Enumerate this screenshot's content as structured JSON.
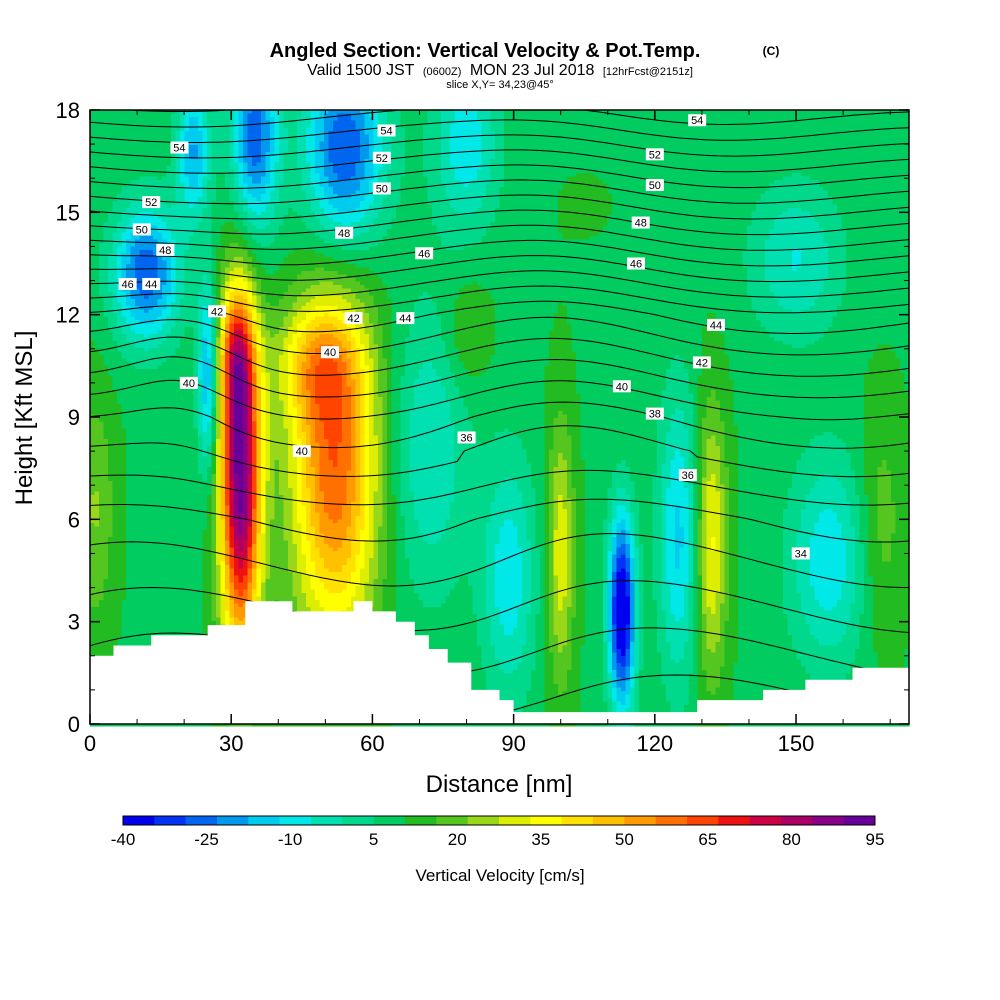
{
  "chart_data": {
    "type": "heatmap",
    "title": "Angled Section: Vertical Velocity & Pot.Temp.",
    "title_units": "(C)",
    "subtitle_main_a": "Valid 1500 JST",
    "subtitle_small_a": "(0600Z)",
    "subtitle_main_b": "MON 23 Jul 2018",
    "subtitle_small_b": "[12hrFcst@2151z]",
    "slice_label": "slice X,Y= 34,23@45°",
    "xlabel": "Distance [nm]",
    "ylabel": "Height [Kft MSL]",
    "xlim": [
      0,
      174
    ],
    "ylim": [
      0,
      18
    ],
    "x_ticks": [
      "0",
      "30",
      "60",
      "90",
      "120",
      "150"
    ],
    "x_tick_values": [
      0,
      30,
      60,
      90,
      120,
      150
    ],
    "y_ticks": [
      "0",
      "3",
      "6",
      "9",
      "12",
      "15",
      "18"
    ],
    "y_tick_values": [
      0,
      3,
      6,
      9,
      12,
      15,
      18
    ],
    "colorbar": {
      "label": "Vertical Velocity [cm/s]",
      "tick_labels": [
        "-40",
        "-25",
        "-10",
        "5",
        "20",
        "35",
        "50",
        "65",
        "80",
        "95"
      ],
      "min": -40,
      "max": 95,
      "colors": [
        "#0000ee",
        "#0033f5",
        "#0066f0",
        "#0099ee",
        "#00ccf0",
        "#00e8e8",
        "#00e0b0",
        "#00d88c",
        "#00cc60",
        "#22bb22",
        "#55c520",
        "#99d818",
        "#ddee00",
        "#ffff00",
        "#ffe000",
        "#ffc000",
        "#ff9a00",
        "#ff7000",
        "#ff4400",
        "#ee1111",
        "#cc0044",
        "#aa0066",
        "#880088",
        "#660099"
      ]
    },
    "terrain_profile": {
      "x_nm": [
        0,
        5,
        5,
        13,
        13,
        25,
        25,
        33,
        33,
        43,
        43,
        56,
        56,
        60,
        60,
        65,
        65,
        69,
        69,
        72,
        72,
        76,
        76,
        81,
        81,
        87,
        87,
        90,
        90,
        129,
        129,
        143,
        143,
        152,
        152,
        162,
        162,
        175
      ],
      "height_kft": [
        2.0,
        2.0,
        2.3,
        2.3,
        2.6,
        2.6,
        2.9,
        2.9,
        3.6,
        3.6,
        3.3,
        3.3,
        3.6,
        3.6,
        3.3,
        3.3,
        3.0,
        3.0,
        2.6,
        2.6,
        2.2,
        2.2,
        1.8,
        1.8,
        1.0,
        1.0,
        0.7,
        0.7,
        0.35,
        0.35,
        0.7,
        0.7,
        1.0,
        1.0,
        1.3,
        1.3,
        1.65,
        1.65
      ]
    },
    "vertical_velocity_features": [
      {
        "x": 32,
        "y": 7.2,
        "sx": 3.0,
        "sy": 3.5,
        "value": 95
      },
      {
        "x": 31,
        "y": 10.8,
        "sx": 2.5,
        "sy": 1.3,
        "value": 40
      },
      {
        "x": 52,
        "y": 7.5,
        "sx": 6.5,
        "sy": 3.5,
        "value": 62
      },
      {
        "x": 48,
        "y": 10.5,
        "sx": 6.0,
        "sy": 1.2,
        "value": 32
      },
      {
        "x": 100,
        "y": 5.0,
        "sx": 2.0,
        "sy": 2.7,
        "value": 32
      },
      {
        "x": 113,
        "y": 3.3,
        "sx": 2.0,
        "sy": 2.0,
        "value": -48
      },
      {
        "x": 125,
        "y": 5.5,
        "sx": 3.0,
        "sy": 3.0,
        "value": -15
      },
      {
        "x": 132,
        "y": 5.3,
        "sx": 2.3,
        "sy": 2.8,
        "value": 35
      },
      {
        "x": 157,
        "y": 4.8,
        "sx": 6.0,
        "sy": 2.2,
        "value": -12
      },
      {
        "x": 168,
        "y": 5.8,
        "sx": 3.5,
        "sy": 2.5,
        "value": 20
      },
      {
        "x": 1,
        "y": 6.3,
        "sx": 3.0,
        "sy": 2.5,
        "value": 22
      },
      {
        "x": 12,
        "y": 13.2,
        "sx": 5.0,
        "sy": 1.4,
        "value": -30
      },
      {
        "x": 35,
        "y": 17.2,
        "sx": 3.5,
        "sy": 2.0,
        "value": -30
      },
      {
        "x": 54,
        "y": 16.8,
        "sx": 6.0,
        "sy": 2.0,
        "value": -32
      },
      {
        "x": 22,
        "y": 16.8,
        "sx": 2.5,
        "sy": 1.4,
        "value": -20
      },
      {
        "x": 25,
        "y": 10.2,
        "sx": 1.5,
        "sy": 2.0,
        "value": -22
      },
      {
        "x": 80,
        "y": 17.0,
        "sx": 5.0,
        "sy": 1.8,
        "value": -12
      },
      {
        "x": 72,
        "y": 8.0,
        "sx": 6.0,
        "sy": 3.0,
        "value": -8
      },
      {
        "x": 89,
        "y": 4.3,
        "sx": 4.0,
        "sy": 2.5,
        "value": -12
      },
      {
        "x": 105,
        "y": 15.2,
        "sx": 12.0,
        "sy": 2.0,
        "value": 10
      },
      {
        "x": 80,
        "y": 11.4,
        "sx": 3.5,
        "sy": 1.2,
        "value": 18
      },
      {
        "x": 150,
        "y": 13.6,
        "sx": 7.0,
        "sy": 1.6,
        "value": -8
      }
    ],
    "theta_contour_levels": [
      "54",
      "52",
      "50",
      "48",
      "46",
      "44",
      "42",
      "40",
      "38",
      "36",
      "34"
    ],
    "contour_labels": [
      {
        "text": "54",
        "x": 19,
        "y": 16.9
      },
      {
        "text": "54",
        "x": 63,
        "y": 17.4
      },
      {
        "text": "54",
        "x": 129,
        "y": 17.7
      },
      {
        "text": "52",
        "x": 13,
        "y": 15.3
      },
      {
        "text": "52",
        "x": 62,
        "y": 16.6
      },
      {
        "text": "52",
        "x": 120,
        "y": 16.7
      },
      {
        "text": "50",
        "x": 11,
        "y": 14.5
      },
      {
        "text": "50",
        "x": 62,
        "y": 15.7
      },
      {
        "text": "50",
        "x": 120,
        "y": 15.8
      },
      {
        "text": "48",
        "x": 16,
        "y": 13.9
      },
      {
        "text": "48",
        "x": 54,
        "y": 14.4
      },
      {
        "text": "48",
        "x": 117,
        "y": 14.7
      },
      {
        "text": "46",
        "x": 8,
        "y": 12.9
      },
      {
        "text": "46",
        "x": 71,
        "y": 13.8
      },
      {
        "text": "46",
        "x": 116,
        "y": 13.5
      },
      {
        "text": "44",
        "x": 13,
        "y": 12.9
      },
      {
        "text": "44",
        "x": 67,
        "y": 11.9
      },
      {
        "text": "44",
        "x": 133,
        "y": 11.7
      },
      {
        "text": "42",
        "x": 27,
        "y": 12.1
      },
      {
        "text": "42",
        "x": 56,
        "y": 11.9
      },
      {
        "text": "42",
        "x": 130,
        "y": 10.6
      },
      {
        "text": "40",
        "x": 21,
        "y": 10.0
      },
      {
        "text": "40",
        "x": 51,
        "y": 10.9
      },
      {
        "text": "40",
        "x": 113,
        "y": 9.9
      },
      {
        "text": "40",
        "x": 45,
        "y": 8.0
      },
      {
        "text": "38",
        "x": 120,
        "y": 9.1
      },
      {
        "text": "36",
        "x": 80,
        "y": 8.4
      },
      {
        "text": "36",
        "x": 127,
        "y": 7.3
      },
      {
        "text": "34",
        "x": 151,
        "y": 5.0
      }
    ]
  }
}
